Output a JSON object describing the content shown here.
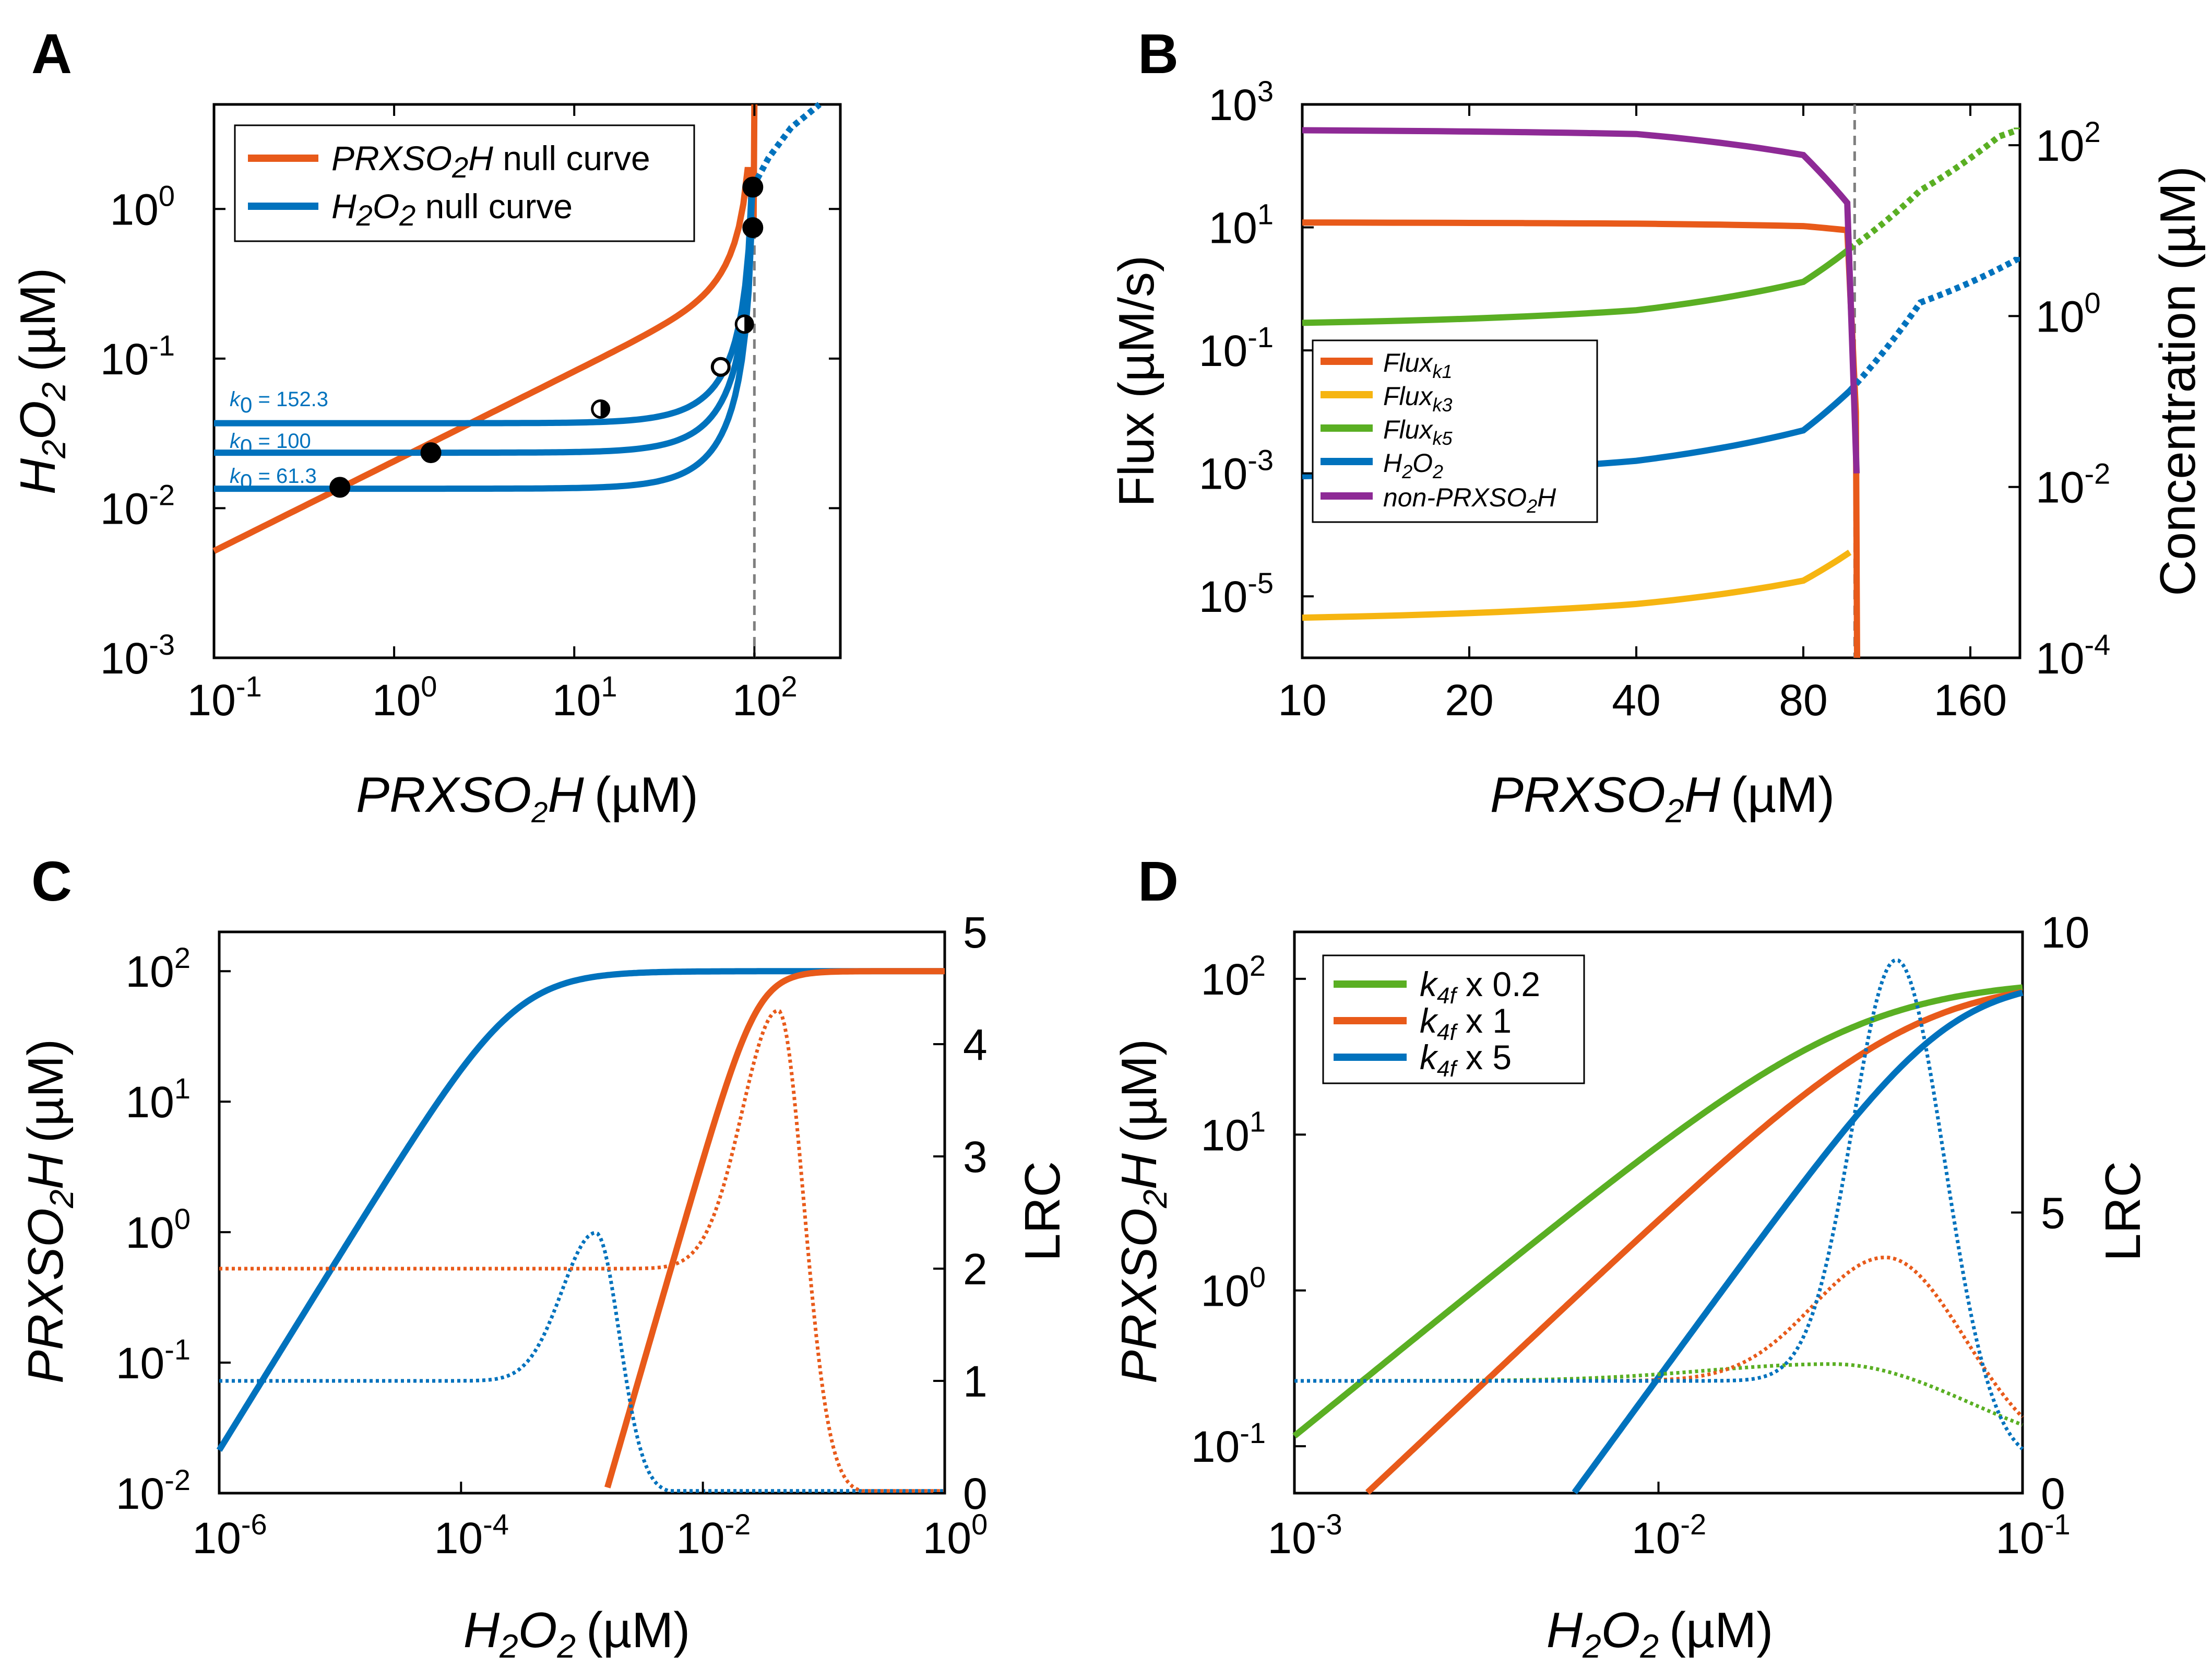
{
  "colors": {
    "orange": "#e85a1a",
    "blue": "#0072bd",
    "green": "#5aaf23",
    "yellow": "#f6b511",
    "purple": "#8e2a96",
    "dash": "#7f7f7f",
    "black": "#000000"
  },
  "chart_data": [
    {
      "panel": "A",
      "type": "line",
      "xscale": "log",
      "yscale": "log",
      "xlim": [
        0.1,
        300
      ],
      "ylim": [
        0.001,
        5
      ],
      "xticks": [
        {
          "base": "10",
          "exp": "-1"
        },
        {
          "base": "10",
          "exp": "0"
        },
        {
          "base": "10",
          "exp": "1"
        },
        {
          "base": "10",
          "exp": "2"
        }
      ],
      "yticks": [
        {
          "base": "10",
          "exp": "-3"
        },
        {
          "base": "10",
          "exp": "-2"
        },
        {
          "base": "10",
          "exp": "-1"
        },
        {
          "base": "10",
          "exp": "0"
        }
      ],
      "xlabel": {
        "main": "PRXSO",
        "sub": "2",
        "tail": "H",
        "unit": "(µM)"
      },
      "ylabel": {
        "a": "H",
        "b": "2",
        "c": "O",
        "d": "2",
        "unit": "(µM)"
      },
      "legend": [
        {
          "color": "orange",
          "pre": "PRXSO",
          "sub": "2",
          "post": "H",
          "text": " null curve"
        },
        {
          "color": "blue",
          "pre": "H",
          "sub": "2",
          "mid": "O",
          "sub2": "2",
          "text": " null curve"
        }
      ],
      "k0_labels": [
        {
          "k": "k",
          "sub": "0",
          "val": " = 152.3"
        },
        {
          "k": "k",
          "sub": "0",
          "val": " = 100"
        },
        {
          "k": "k",
          "sub": "0",
          "val": " = 61.3"
        }
      ],
      "orange_null_curve": {
        "plateau": 100,
        "coeff": 0.0136,
        "exponent": 0.6
      },
      "blue_null_curves": [
        {
          "k0": 152.3,
          "base": 0.037,
          "Pmax": 100,
          "Pcrit": 92
        },
        {
          "k0": 100,
          "base": 0.0235,
          "Pmax": 100,
          "Pcrit": 92
        },
        {
          "k0": 61.3,
          "base": 0.0135,
          "Pmax": 100,
          "Pcrit": 92
        }
      ],
      "dashed_vline_x": 100,
      "stable_points": [
        [
          0.5,
          0.0138
        ],
        [
          1.6,
          0.0235
        ],
        [
          98,
          0.75
        ],
        [
          98,
          1.4
        ]
      ],
      "unstable_points": [
        [
          65,
          0.088
        ]
      ],
      "half_points": [
        [
          14,
          0.046
        ],
        [
          88,
          0.17
        ]
      ],
      "blue_dotted_tail": [
        [
          98,
          1.4
        ],
        [
          120,
          2.2
        ],
        [
          160,
          3.5
        ],
        [
          230,
          5
        ]
      ]
    },
    {
      "panel": "B",
      "type": "line",
      "xscale": "linear-ish",
      "yscale": "log",
      "xticks": [
        "10",
        "20",
        "40",
        "80",
        "160"
      ],
      "ylim_left": [
        1e-06,
        1000
      ],
      "yticks_left": [
        {
          "base": "10",
          "exp": "-5"
        },
        {
          "base": "10",
          "exp": "-3"
        },
        {
          "base": "10",
          "exp": "-1"
        },
        {
          "base": "10",
          "exp": "1"
        },
        {
          "base": "10",
          "exp": "3"
        }
      ],
      "ylim_right": [
        0.0001,
        300
      ],
      "yticks_right": [
        {
          "base": "10",
          "exp": "-4"
        },
        {
          "base": "10",
          "exp": "-2"
        },
        {
          "base": "10",
          "exp": "0"
        },
        {
          "base": "10",
          "exp": "2"
        }
      ],
      "xlabel": {
        "main": "PRXSO",
        "sub": "2",
        "tail": "H",
        "unit": "(µM)"
      },
      "ylabel_left": "Flux (µM/s)",
      "ylabel_right": "Concentration (µM)",
      "legend": [
        {
          "color": "orange",
          "text": "Flux",
          "sub": "k1"
        },
        {
          "color": "yellow",
          "text": "Flux",
          "sub": "k3"
        },
        {
          "color": "green",
          "text": "Flux",
          "sub": "k5"
        },
        {
          "color": "blue",
          "text": "H",
          "sub": "2",
          "mid": "O",
          "sub2": "2"
        },
        {
          "color": "purple",
          "text": "non-PRXSO",
          "sub": "2",
          "post": "H"
        }
      ],
      "dashed_vline_x": 99,
      "series": [
        {
          "name": "Flux_k1",
          "values": [
            [
              10,
              12
            ],
            [
              40,
              11.5
            ],
            [
              80,
              10.5
            ],
            [
              96,
              9
            ],
            [
              99.5,
              0.01
            ],
            [
              100,
              1e-06
            ]
          ]
        },
        {
          "name": "Flux_k3",
          "values": [
            [
              10,
              4.5e-06
            ],
            [
              40,
              7.5e-06
            ],
            [
              80,
              1.8e-05
            ],
            [
              97,
              5.2e-05
            ]
          ]
        },
        {
          "name": "Flux_k5",
          "values": [
            [
              10,
              0.28
            ],
            [
              40,
              0.45
            ],
            [
              80,
              1.3
            ],
            [
              97,
              4.5
            ],
            [
              130,
              40
            ],
            [
              180,
              300
            ],
            [
              200,
              420
            ]
          ]
        },
        {
          "name": "H2O2",
          "values": [
            [
              10,
              0.0009
            ],
            [
              40,
              0.0016
            ],
            [
              80,
              0.005
            ],
            [
              97,
              0.022
            ],
            [
              130,
              0.6
            ],
            [
              200,
              3.5
            ]
          ]
        },
        {
          "name": "non-PRXSO2H",
          "values": [
            [
              10,
              380
            ],
            [
              40,
              330
            ],
            [
              80,
              150
            ],
            [
              96,
              25
            ],
            [
              99.8,
              0.001
            ]
          ]
        }
      ]
    },
    {
      "panel": "C",
      "type": "line",
      "xscale": "log",
      "yscale": "log",
      "xlim": [
        1e-06,
        1
      ],
      "ylim": [
        0.01,
        200
      ],
      "xticks": [
        {
          "base": "10",
          "exp": "-6"
        },
        {
          "base": "10",
          "exp": "-4"
        },
        {
          "base": "10",
          "exp": "-2"
        },
        {
          "base": "10",
          "exp": "0"
        }
      ],
      "yticks": [
        {
          "base": "10",
          "exp": "-2"
        },
        {
          "base": "10",
          "exp": "-1"
        },
        {
          "base": "10",
          "exp": "0"
        },
        {
          "base": "10",
          "exp": "1"
        },
        {
          "base": "10",
          "exp": "2"
        }
      ],
      "ylim_right": [
        0,
        5
      ],
      "yticks_right": [
        "0",
        "1",
        "2",
        "3",
        "4",
        "5"
      ],
      "xlabel": {
        "a": "H",
        "b": "2",
        "c": "O",
        "d": "2",
        "unit": "(µM)"
      },
      "ylabel": {
        "main": "PRXSO",
        "sub": "2",
        "tail": "H",
        "unit": "(µM)"
      },
      "ylabel_right": "LRC",
      "series": [
        {
          "name": "blue_solid",
          "K": 0.00028,
          "n": 1.5,
          "max": 100
        },
        {
          "name": "orange_solid",
          "K": 0.028,
          "n": 3.2,
          "max": 100
        },
        {
          "name": "blue_LRC_peak",
          "base": 1.0,
          "peak": 2.32,
          "peak_x": 0.0013
        },
        {
          "name": "orange_LRC_peak",
          "base": 2.0,
          "peak": 4.3,
          "peak_x": 0.042
        }
      ]
    },
    {
      "panel": "D",
      "type": "line",
      "xscale": "log",
      "yscale": "log",
      "xlim": [
        0.001,
        0.1
      ],
      "ylim": [
        0.05,
        200
      ],
      "xticks": [
        {
          "base": "10",
          "exp": "-3"
        },
        {
          "base": "10",
          "exp": "-2"
        },
        {
          "base": "10",
          "exp": "-1"
        }
      ],
      "yticks": [
        {
          "base": "10",
          "exp": "-1"
        },
        {
          "base": "10",
          "exp": "0"
        },
        {
          "base": "10",
          "exp": "1"
        },
        {
          "base": "10",
          "exp": "2"
        }
      ],
      "ylim_right": [
        0,
        10
      ],
      "yticks_right": [
        "0",
        "5",
        "10"
      ],
      "xlabel": {
        "a": "H",
        "b": "2",
        "c": "O",
        "d": "2",
        "unit": "(µM)"
      },
      "ylabel": {
        "main": "PRXSO",
        "sub": "2",
        "tail": "H",
        "unit": "(µM)"
      },
      "ylabel_right": "LRC",
      "legend": [
        {
          "color": "green",
          "k": "k",
          "sub": "4f",
          "text": " x 0.2"
        },
        {
          "color": "orange",
          "k": "k",
          "sub": "4f",
          "text": " x 1"
        },
        {
          "color": "blue",
          "k": "k",
          "sub": "4f",
          "text": " x 5"
        }
      ],
      "series": [
        {
          "name": "k4f x 0.2",
          "K": 0.035,
          "n": 1.9,
          "max": 100
        },
        {
          "name": "k4f x 1",
          "K": 0.05,
          "n": 2.2,
          "max": 100
        },
        {
          "name": "k4f x 5",
          "K": 0.063,
          "n": 3.2,
          "max": 100
        },
        {
          "name": "LRC k4f x 0.2",
          "base": 2.0,
          "peak": 2.3,
          "peak_x": 0.03
        },
        {
          "name": "LRC k4f x 1",
          "base": 2.0,
          "peak": 4.2,
          "peak_x": 0.042
        },
        {
          "name": "LRC k4f x 5",
          "base": 2.0,
          "peak": 9.5,
          "peak_x": 0.045
        }
      ]
    }
  ],
  "panels": {
    "a": "A",
    "b": "B",
    "c": "C",
    "d": "D"
  }
}
